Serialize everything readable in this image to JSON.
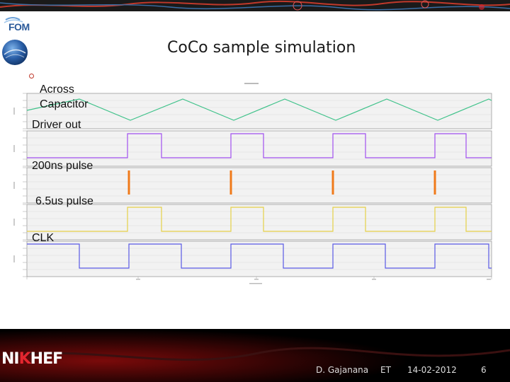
{
  "slide": {
    "title": "CoCo sample simulation",
    "fom_logo_text": "FOM",
    "nikhef_logo_text": {
      "a": "NI",
      "b": "K",
      "c": "HEF"
    }
  },
  "traces": [
    {
      "label": "Across\nCapacitor",
      "line1": "Across",
      "line2": "Capacitor",
      "color": "#3fc28a",
      "kind": "triangle"
    },
    {
      "label": "Driver out",
      "color": "#a14ff0",
      "kind": "pulse"
    },
    {
      "label": "200ns pulse",
      "color": "#f07a1a",
      "kind": "spike"
    },
    {
      "label": "6.5us pulse",
      "color": "#e6d047",
      "kind": "pulse"
    },
    {
      "label": "CLK",
      "color": "#5a5ae6",
      "kind": "clock"
    }
  ],
  "footer": {
    "author": "D. Gajanana",
    "event": "ET",
    "date": "14-02-2012",
    "page": "6"
  },
  "colors": {
    "accent": "#c0392b",
    "footer_bg": "#000000",
    "title_text": "#1a1a1a"
  }
}
